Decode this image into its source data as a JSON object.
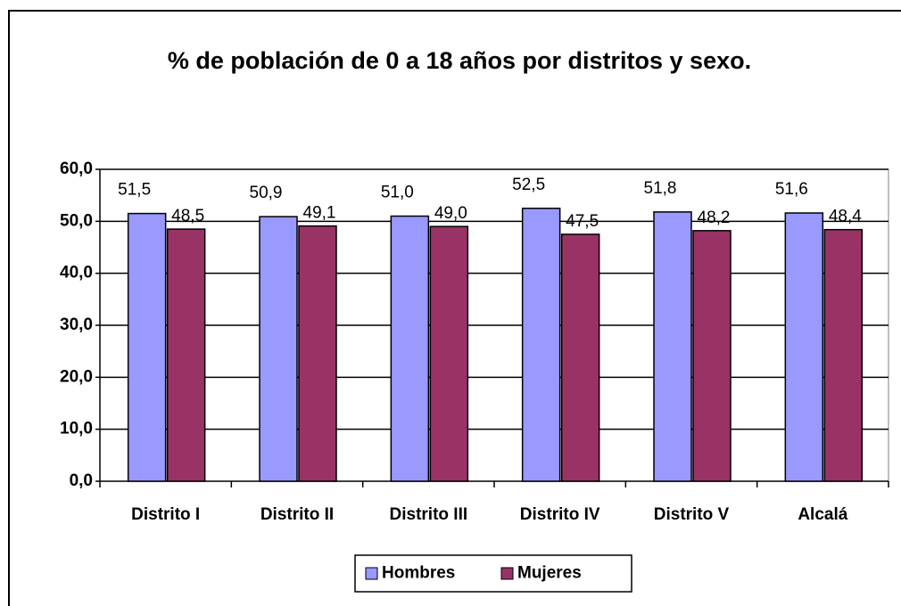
{
  "chart_data": {
    "type": "bar",
    "title": "% de población de 0 a 18 años por distritos y sexo.",
    "categories": [
      "Distrito I",
      "Distrito II",
      "Distrito III",
      "Distrito IV",
      "Distrito V",
      "Alcalá"
    ],
    "series": [
      {
        "name": "Hombres",
        "color": "#9999ff",
        "values": [
          51.5,
          50.9,
          51.0,
          52.5,
          51.8,
          51.6
        ],
        "value_labels": [
          "51,5",
          "50,9",
          "51,0",
          "52,5",
          "51,8",
          "51,6"
        ]
      },
      {
        "name": "Mujeres",
        "color": "#993366",
        "values": [
          48.5,
          49.1,
          49.0,
          47.5,
          48.2,
          48.4
        ],
        "value_labels": [
          "48,5",
          "49,1",
          "49,0",
          "47,5",
          "48,2",
          "48,4"
        ]
      }
    ],
    "ylim": [
      0,
      60
    ],
    "yticks": [
      {
        "value": 0,
        "label": "0,0"
      },
      {
        "value": 10,
        "label": "10,0"
      },
      {
        "value": 20,
        "label": "20,0"
      },
      {
        "value": 30,
        "label": "30,0"
      },
      {
        "value": 40,
        "label": "40,0"
      },
      {
        "value": 50,
        "label": "50,0"
      },
      {
        "value": 60,
        "label": "60,0"
      }
    ],
    "grid": true,
    "legend": "bottom"
  }
}
